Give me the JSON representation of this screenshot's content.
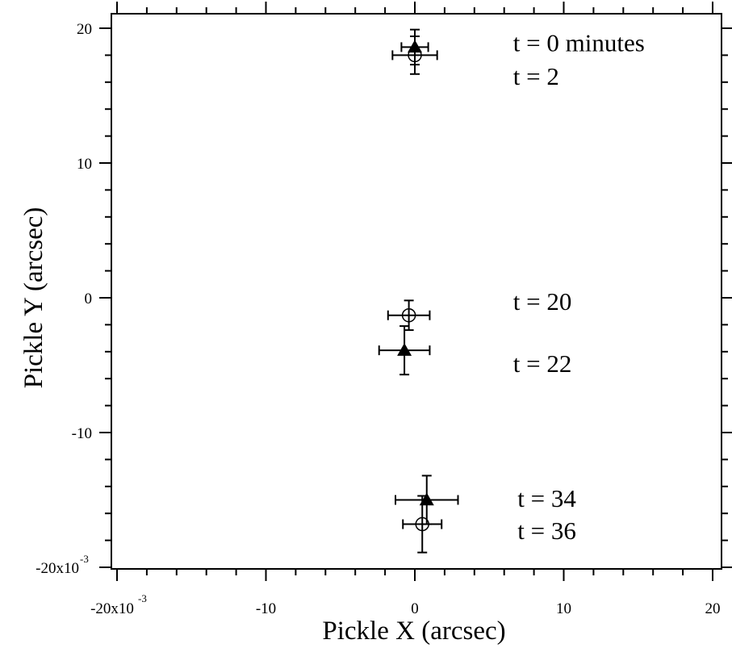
{
  "chart_data": {
    "type": "scatter",
    "xlabel": "Pickle X (arcsec)",
    "ylabel": "Pickle Y (arcsec)",
    "xlim": [
      -0.02,
      0.02
    ],
    "ylim": [
      -0.02,
      0.02
    ],
    "x_ticks": [
      -0.02,
      -0.01,
      0,
      0.01,
      0.02
    ],
    "y_ticks": [
      -0.02,
      -0.01,
      0,
      0.01,
      0.02
    ],
    "x_tick_labels": [
      "-20x10",
      "-10",
      "0",
      "10",
      "20"
    ],
    "y_tick_labels": [
      "-20x10",
      "-10",
      "0",
      "10",
      "20"
    ],
    "axis_exponent": "-3",
    "grid": false,
    "series": [
      {
        "marker": "filled-triangle",
        "points": [
          {
            "x": 0.0,
            "y": 0.0186,
            "xerr": 0.0009,
            "yerr": 0.0013
          },
          {
            "x": -0.0007,
            "y": -0.0039,
            "xerr": 0.0017,
            "yerr": 0.0018
          },
          {
            "x": 0.0008,
            "y": -0.015,
            "xerr": 0.0021,
            "yerr": 0.0018
          }
        ]
      },
      {
        "marker": "open-circle",
        "points": [
          {
            "x": 0.0,
            "y": 0.018,
            "xerr": 0.0015,
            "yerr": 0.0014
          },
          {
            "x": -0.0004,
            "y": -0.0013,
            "xerr": 0.0014,
            "yerr": 0.0011
          },
          {
            "x": 0.0005,
            "y": -0.0168,
            "xerr": 0.0013,
            "yerr": 0.0021
          }
        ]
      }
    ],
    "annotations": [
      {
        "text": "t = 0 minutes",
        "x": 0.0066,
        "y": 0.0183
      },
      {
        "text": "t = 2",
        "x": 0.0066,
        "y": 0.0158
      },
      {
        "text": "t = 20",
        "x": 0.0066,
        "y": -0.0009
      },
      {
        "text": "t = 22",
        "x": 0.0066,
        "y": -0.0055
      },
      {
        "text": "t = 34",
        "x": 0.0069,
        "y": -0.0155
      },
      {
        "text": "t = 36",
        "x": 0.0069,
        "y": -0.0179
      }
    ]
  }
}
